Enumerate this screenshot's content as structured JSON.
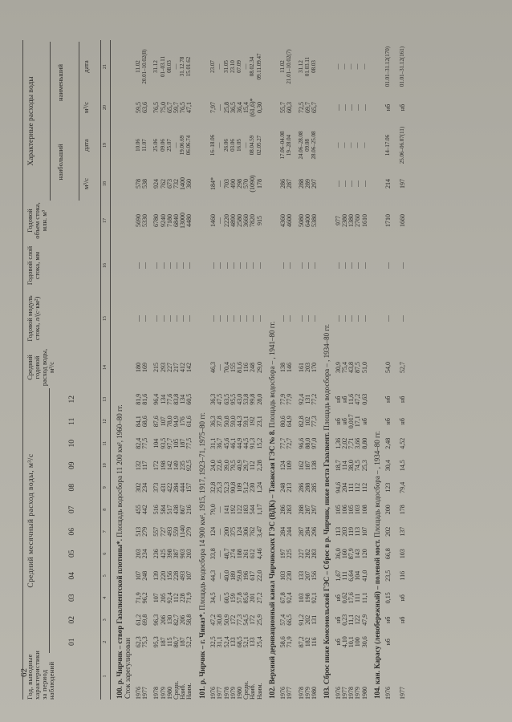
{
  "page_number": "62",
  "header": {
    "year_col": "Год, выводные характеристики за период наблюдений",
    "monthly_group": "Средний месячный расход воды, м³/с",
    "months": [
      "01",
      "02",
      "03",
      "04",
      "05",
      "06",
      "07",
      "08",
      "09",
      "10",
      "11",
      "12"
    ],
    "mean_annual": "Средний годовой расход воды, м³/с",
    "annual_modulus": "Годовой модуль стока, л/(с·км²)",
    "annual_layer": "Годовой слой стока, мм",
    "annual_volume": "Годовой объем стока, млн. м³",
    "characteristic": "Характерные расходы воды",
    "max_label": "наибольший",
    "min_label": "наименьший",
    "sub": [
      "м³/с",
      "дата",
      "м³/с",
      "дата"
    ],
    "column_numbers": [
      "1",
      "2",
      "3",
      "4",
      "5",
      "6",
      "7",
      "8",
      "9",
      "10",
      "11",
      "12",
      "13",
      "14",
      "15",
      "16",
      "17",
      "18",
      "19",
      "20",
      "21"
    ]
  },
  "sections": [
    {
      "num": "100.",
      "title_bold": "р. Чирчик – створ Газалкентской плотины*.",
      "title_rest": "Площадь водосбора 11 200 км², 1960–80 гг.",
      "title_line2": "Сток зарегулирован",
      "blocks": [
        [
          {
            "label": "1976",
            "cells": [
              "62,3",
              "61,2",
              "71,9",
              "107",
              "203",
              "513",
              "455",
              "302",
              "132",
              "82,4",
              "84,1",
              "81,9",
              "180",
              "—",
              "—",
              "5690",
              "578",
              "10.06",
              "59,5",
              "11.02"
            ]
          },
          {
            "label": "1977",
            "cells": [
              "75,3",
              "69,8",
              "96,2",
              "248",
              "234",
              "279",
              "442",
              "234",
              "117",
              "77,5",
              "68,6",
              "81,6",
              "169",
              "—",
              "—",
              "5330",
              "538",
              "11.07",
              "63,6",
              "20.01–10.02(8)"
            ]
          }
        ],
        [
          {
            "label": "1978",
            "cells": [
              "95,3",
              "96,3",
              "107",
              "139",
              "236",
              "557",
              "516",
              "373",
              "172",
              "104",
              "87,6",
              "96,4",
              "215",
              "—",
              "—",
              "6780",
              "924",
              "25.06",
              "76,5",
              "31.12"
            ]
          },
          {
            "label": "1979",
            "cells": [
              "187",
              "206",
              "205",
              "220",
              "425",
              "727",
              "584",
              "431",
              "198",
              "93,5",
              "107",
              "134",
              "293",
              "—",
              "—",
              "9240",
              "762",
              "09.06",
              "75,0",
              "01–03.11"
            ]
          },
          {
            "label": "1980",
            "cells": [
              "115",
              "130",
              "92,4",
              "156",
              "398",
              "493",
              "517",
              "422",
              "142",
              "97,7",
              "78,0",
              "77,6",
              "227",
              "—",
              "—",
              "7180",
              "673",
              "25.07",
              "65,7",
              "08.03"
            ]
          },
          {
            "label": "Средн.",
            "cells": [
              "80,7",
              "82,7",
              "112",
              "228",
              "387",
              "559",
              "438",
              "284",
              "149",
              "105",
              "94,9",
              "83,8",
              "217",
              "—",
              "—",
              "6840",
              "732",
              "—",
              "59,7",
              "—"
            ]
          },
          {
            "label": "Наиб.",
            "cells": [
              "187",
              "206",
              "228",
              "493",
              "903",
              "1140",
              "867",
              "444",
              "235",
              "187",
              "176",
              "134",
              "412",
              "—",
              "—",
              "13000",
              "1400",
              "19.06.69",
              "76,5",
              "31.12.78"
            ]
          },
          {
            "label": "Наим.",
            "cells": [
              "52,2",
              "58,8",
              "71,9",
              "107",
              "203",
              "279",
              "216",
              "157",
              "92,5",
              "77,5",
              "61,6",
              "60,5",
              "142",
              "—",
              "—",
              "4480",
              "360",
              "06.06.74",
              "47,1",
              "15.01.62"
            ]
          }
        ]
      ]
    },
    {
      "num": "101.",
      "title_bold": "р. Чирчик – г. Чиназ*.",
      "title_rest": "Площадь водосбора 14 900 км², 1915, 1917, 1923–71, 1975–80 гг.",
      "title_line2": "",
      "blocks": [
        [
          {
            "label": "1976",
            "cells": [
              "32,5",
              "47,2",
              "34,5",
              "44,3",
              "33,8",
              "124",
              "79,0",
              "32,8",
              "24,0",
              "31,1",
              "36,3",
              "36,3",
              "46,3",
              "—",
              "—",
              "1460",
              "184*",
              "16–18.06",
              "7,97",
              "23.07"
            ]
          },
          {
            "label": "1977",
            "cells": [
              "31,1",
              "30,8",
              "—",
              "—",
              "—",
              "—",
              "—",
              "25,3",
              "22,6",
              "36,7",
              "37,8",
              "47,5",
              "—",
              "—",
              "—",
              "—",
              "—",
              "—",
              "—",
              "—"
            ]
          },
          {
            "label": "1978",
            "cells": [
              "52,4",
              "50,9",
              "60,5",
              "40,0",
              "48,7",
              "200",
              "141",
              "52,3",
              "39,0",
              "45,6",
              "50,8",
              "63,5",
              "70,4",
              "—",
              "—",
              "2220",
              "703",
              "26.06",
              "25,8",
              "31.05"
            ]
          },
          {
            "label": "1979",
            "cells": [
              "133",
              "172",
              "159",
              "189",
              "274",
              "375",
              "192",
              "90,8",
              "79,5",
              "46,1",
              "59,0",
              "95,5",
              "155",
              "—",
              "—",
              "4890",
              "490",
              "03.06",
              "36,5",
              "23.10"
            ]
          },
          {
            "label": "1980",
            "cells": [
              "68,5",
              "77,3",
              "57,8",
              "59,8",
              "188",
              "124",
              "122",
              "109",
              "40,9",
              "44,9",
              "44,3",
              "43,0",
              "81,6",
              "—",
              "—",
              "2580",
              "298",
              "16.05",
              "36,4",
              "07.09"
            ]
          },
          {
            "label": "Средн.",
            "cells": [
              "52,1",
              "54,5",
              "85,6",
              "196",
              "261",
              "306",
              "183",
              "51,2",
              "29,7",
              "44,5",
              "59,1",
              "53,8",
              "116",
              "—",
              "—",
              "3660",
              "570",
              "—",
              "15,4",
              "—"
            ]
          },
          {
            "label": "Наиб.",
            "cells": [
              "133",
              "172",
              "201",
              "617",
              "612",
              "762",
              "544",
              "230",
              "112",
              "91,3",
              "192",
              "99,8",
              "248",
              "—",
              "—",
              "7820",
              "(1090)",
              "08.04.59",
              "(61,6)*",
              "08.02.34"
            ]
          },
          {
            "label": "Наим.",
            "cells": [
              "25,4",
              "25,9",
              "27,2",
              "22,0",
              "4,46",
              "3,47",
              "1,17",
              "1,24",
              "2,28",
              "15,2",
              "23,1",
              "28,0",
              "29,0",
              "—",
              "—",
              "915",
              "178",
              "02.05.27",
              "0,30",
              "09.11.09.47"
            ]
          }
        ]
      ]
    },
    {
      "num": "102.",
      "title_bold": "Верхний деривационный канал Чирчикских ГЭС (ВДК) – Таваксая ГЭС № 8.",
      "title_rest": "Площадь водосбора – , 1941–80 гг.",
      "title_line2": "",
      "blocks": [
        [
          {
            "label": "1976",
            "cells": [
              "58,6",
              "57,4",
              "67,8",
              "103",
              "197",
              "284",
              "286",
              "248",
              "124",
              "77,7",
              "80,6",
              "77,9",
              "138",
              "—",
              "—",
              "4360",
              "286",
              "17.06–04.08",
              "55,7",
              "11.02"
            ]
          },
          {
            "label": "1977",
            "cells": [
              "71,9",
              "66,5",
              "92,4",
              "230",
              "225",
              "244",
              "283",
              "213",
              "109",
              "72,7",
              "64,9",
              "77,9",
              "146",
              "—",
              "—",
              "4600",
              "287",
              "19–28.04",
              "60,3",
              "21.01–10.02(7)"
            ]
          }
        ],
        [
          {
            "label": "1978",
            "cells": [
              "87,2",
              "91,2",
              "103",
              "133",
              "227",
              "287",
              "288",
              "286",
              "162",
              "96,6",
              "82,8",
              "92,4",
              "161",
              "—",
              "—",
              "5080",
              "288",
              "24.06–28.08",
              "72,5",
              "31.12"
            ]
          },
          {
            "label": "1979",
            "cells": [
              "182",
              "202",
              "198",
              "207",
              "282",
              "284",
              "287",
              "288",
              "187",
              "88,0",
              "102",
              "131",
              "203",
              "—",
              "—",
              "6400",
              "289",
              "09.08",
              "69,7",
              "01.03.11"
            ]
          },
          {
            "label": "1980",
            "cells": [
              "116",
              "131",
              "92,1",
              "156",
              "283",
              "296",
              "297",
              "285",
              "138",
              "97,0",
              "77,3",
              "77,2",
              "170",
              "—",
              "—",
              "5380",
              "297",
              "28.06–25.08",
              "65,7",
              "08.03"
            ]
          }
        ]
      ]
    },
    {
      "num": "103.",
      "title_bold": "Сброс ниже Комсомольской ГЭС – Сброс в р. Чирчик, ниже поста Газалкент.",
      "title_rest": "Площадь водосбора – , 1934–80 гг.",
      "title_line2": "",
      "blocks": [
        [
          {
            "label": "1976",
            "cells": [
              "нб",
              "нб",
              "нб",
              "1,67",
              "36,0",
              "113",
              "105",
              "94,6",
              "18,7",
              "1,36",
              "нб",
              "нб",
              "30,9",
              "—",
              "—",
              "977",
              "—",
              "—",
              "—",
              "—"
            ]
          },
          {
            "label": "1977",
            "cells": [
              "4,10",
              "0,23",
              "0,62",
              "111",
              "160",
              "203",
              "106",
              "204",
              "114",
              "2,02",
              "нб",
              "нб",
              "75,4",
              "—",
              "—",
              "2380",
              "—",
              "—",
              "—",
              "—"
            ]
          },
          {
            "label": "1978",
            "cells": [
              "10,1",
              "11,1",
              "17,6",
              "6,64",
              "87,9",
              "119",
              "105",
              "111",
              "38,0",
              "7,71",
              "0,017",
              "11,6",
              "43,8",
              "—",
              "—",
              "1380",
              "—",
              "—",
              "—",
              "—"
            ]
          },
          {
            "label": "1979",
            "cells": [
              "100",
              "122",
              "111",
              "104",
              "143",
              "113",
              "103",
              "112",
              "74,5",
              "3,66",
              "17,1",
              "47,2",
              "87,5",
              "—",
              "—",
              "2760",
              "—",
              "—",
              "—",
              "—"
            ]
          },
          {
            "label": "1980",
            "cells": [
              "30,6",
              "47,9",
              "11,1",
              "41,0",
              "120",
              "107",
              "108",
              "112",
              "25,3",
              "8,80",
              "нб",
              "0,63",
              "51,0",
              "—",
              "—",
              "1610",
              "—",
              "—",
              "—",
              "—"
            ]
          }
        ]
      ]
    },
    {
      "num": "104.",
      "title_bold": "кан. Карасу (левобережный) – полевой мост.",
      "title_rest": "Площадь водосбора – , 1934–80 гг.",
      "title_line2": "",
      "blocks": [
        [
          {
            "label": "1976",
            "cells": [
              "нб",
              "нб",
              "0,15",
              "23,5",
              "66,8",
              "202",
              "200",
              "123",
              "30,4",
              "2,48",
              "нб",
              "нб",
              "54,0",
              "—",
              "—",
              "1710",
              "214",
              "14–17.06",
              "нб",
              "01.01–31.12(170)"
            ]
          },
          {
            "label": "1977",
            "cells": [
              "",
              "нб",
              "нб",
              "116",
              "103",
              "137",
              "178",
              "79,4",
              "14,5",
              "4,52",
              "нб",
              "нб",
              "52,7",
              "—",
              "—",
              "1660",
              "197",
              "25.06–06.07(11)",
              "нб",
              "01.01–31.12(161)"
            ]
          }
        ]
      ]
    }
  ]
}
